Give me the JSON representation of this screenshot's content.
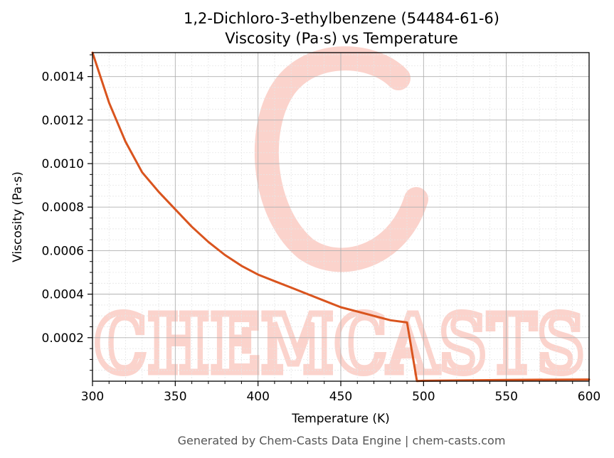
{
  "watermark_text": "CHEMCASTS",
  "footer": "Generated by Chem-Casts Data Engine | chem-casts.com",
  "colors": {
    "line": "#d9541e",
    "watermark": "#fbd3cc",
    "grid_major": "#b0b0b0",
    "grid_minor": "#e6e6e6"
  },
  "chart_data": {
    "type": "line",
    "title": "1,2-Dichloro-3-ethylbenzene (54484-61-6)",
    "subtitle": "Viscosity (Pa·s) vs Temperature",
    "xlabel": "Temperature (K)",
    "ylabel": "Viscosity (Pa·s)",
    "xlim": [
      300,
      600
    ],
    "ylim": [
      0.0,
      0.00151
    ],
    "xticks": [
      300,
      350,
      400,
      450,
      500,
      550,
      600
    ],
    "xtick_labels": [
      "300",
      "350",
      "400",
      "450",
      "500",
      "550",
      "600"
    ],
    "yticks": [
      0.0002,
      0.0004,
      0.0006,
      0.0008,
      0.001,
      0.0012,
      0.0014
    ],
    "ytick_labels": [
      "0.0002",
      "0.0004",
      "0.0006",
      "0.0008",
      "0.0010",
      "0.0012",
      "0.0014"
    ],
    "grid": true,
    "minor_grid": true,
    "series": [
      {
        "x": [
          300,
          310,
          320,
          330,
          340,
          350,
          360,
          370,
          380,
          390,
          400,
          410,
          420,
          430,
          440,
          450,
          460,
          470,
          480,
          490,
          496,
          500,
          550,
          600
        ],
        "y": [
          0.00151,
          0.00128,
          0.0011,
          0.00096,
          0.00087,
          0.00079,
          0.00071,
          0.00064,
          0.00058,
          0.00053,
          0.00049,
          0.00046,
          0.00043,
          0.0004,
          0.00037,
          0.00034,
          0.00032,
          0.0003,
          0.00028,
          0.00027,
          1e-06,
          2e-06,
          6e-06,
          8e-06
        ]
      }
    ]
  }
}
